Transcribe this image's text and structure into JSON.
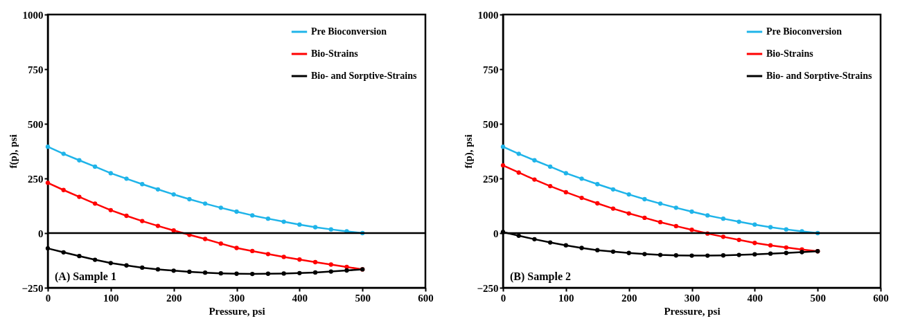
{
  "chart_data": [
    {
      "type": "line",
      "xlabel": "Pressure, psi",
      "ylabel": "f(p), psi",
      "annotations": [
        "(A) Sample 1"
      ],
      "legend": "top right",
      "marker": "circle",
      "grid": false,
      "xlim": [
        0,
        600
      ],
      "xticks": [
        0,
        100,
        200,
        300,
        400,
        500,
        600
      ],
      "ylim": [
        -250,
        1000
      ],
      "yticks": [
        -250,
        0,
        250,
        500,
        750,
        1000
      ],
      "ref_lines": [
        {
          "axis": "y",
          "value": 0,
          "color": "#000000"
        }
      ],
      "x": [
        0,
        25,
        50,
        75,
        100,
        125,
        150,
        175,
        200,
        225,
        250,
        275,
        300,
        325,
        350,
        375,
        400,
        425,
        450,
        475,
        500
      ],
      "series": [
        {
          "name": "Pre Bioconversion",
          "color": "#1fb4e9",
          "values": [
            395,
            363,
            333,
            304,
            274,
            249,
            224,
            200,
            177,
            155,
            135,
            116,
            98,
            81,
            66,
            52,
            39,
            27,
            17,
            8,
            0
          ]
        },
        {
          "name": "Bio-Strains",
          "color": "#ff0000",
          "values": [
            230,
            197,
            166,
            135,
            105,
            79,
            55,
            33,
            12,
            -8,
            -27,
            -48,
            -68,
            -82,
            -96,
            -109,
            -121,
            -133,
            -144,
            -155,
            -166
          ]
        },
        {
          "name": "Bio- and Sorptive-Strains",
          "color": "#000000",
          "values": [
            -70,
            -88,
            -105,
            -122,
            -137,
            -148,
            -158,
            -166,
            -172,
            -177,
            -181,
            -184,
            -186,
            -187,
            -186,
            -185,
            -183,
            -180,
            -176,
            -171,
            -166
          ]
        }
      ]
    },
    {
      "type": "line",
      "xlabel": "Pressure, psi",
      "ylabel": "f(p), psi",
      "annotations": [
        "(B) Sample 2"
      ],
      "legend": "top right",
      "marker": "circle",
      "grid": false,
      "xlim": [
        0,
        600
      ],
      "xticks": [
        0,
        100,
        200,
        300,
        400,
        500,
        600
      ],
      "ylim": [
        -250,
        1000
      ],
      "yticks": [
        -250,
        0,
        250,
        500,
        750,
        1000
      ],
      "ref_lines": [
        {
          "axis": "y",
          "value": 0,
          "color": "#000000"
        }
      ],
      "x": [
        0,
        25,
        50,
        75,
        100,
        125,
        150,
        175,
        200,
        225,
        250,
        275,
        300,
        325,
        350,
        375,
        400,
        425,
        450,
        475,
        500
      ],
      "series": [
        {
          "name": "Pre Bioconversion",
          "color": "#1fb4e9",
          "values": [
            395,
            363,
            333,
            304,
            274,
            249,
            224,
            200,
            177,
            155,
            135,
            116,
            98,
            81,
            66,
            52,
            39,
            27,
            17,
            8,
            0
          ]
        },
        {
          "name": "Bio-Strains",
          "color": "#ff0000",
          "values": [
            310,
            277,
            245,
            215,
            187,
            161,
            136,
            112,
            90,
            70,
            50,
            32,
            15,
            -2,
            -17,
            -31,
            -45,
            -56,
            -66,
            -75,
            -83
          ]
        },
        {
          "name": "Bio- and Sorptive-Strains",
          "color": "#000000",
          "values": [
            5,
            -12,
            -28,
            -43,
            -56,
            -68,
            -78,
            -85,
            -91,
            -96,
            -100,
            -102,
            -103,
            -103,
            -102,
            -100,
            -97,
            -94,
            -91,
            -87,
            -83
          ]
        }
      ]
    }
  ]
}
